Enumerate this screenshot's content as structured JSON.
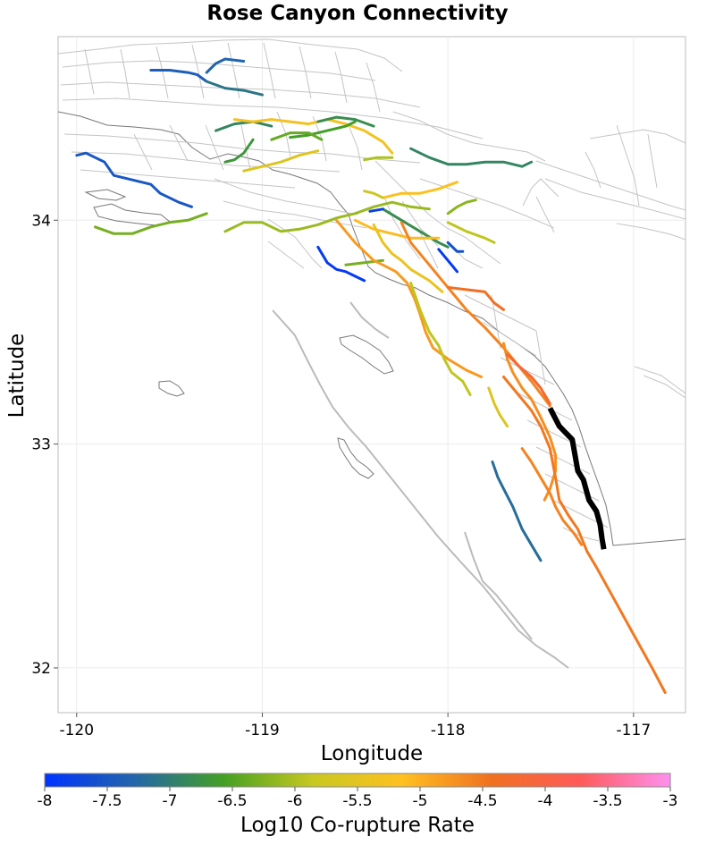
{
  "chart_data": {
    "type": "map",
    "title": "Rose Canyon Connectivity",
    "xlabel": "Longitude",
    "ylabel": "Latitude",
    "xlim": [
      -120.1,
      -116.72
    ],
    "ylim": [
      31.8,
      34.82
    ],
    "x_ticks": [
      "-120",
      "-119",
      "-118",
      "-117"
    ],
    "x_tick_values": [
      -120,
      -119,
      -118,
      -117
    ],
    "y_ticks": [
      "32",
      "33",
      "34"
    ],
    "y_tick_values": [
      32,
      33,
      34
    ],
    "grid": true,
    "colorbar": {
      "label": "Log10 Co-rupture Rate",
      "range": [
        -8,
        -3
      ],
      "orientation": "horizontal",
      "placement": "bottom",
      "ticks": [
        "-8",
        "-7.5",
        "-7",
        "-6.5",
        "-6",
        "-5.5",
        "-5",
        "-4.5",
        "-4",
        "-3.5",
        "-3"
      ],
      "tick_values": [
        -8,
        -7.5,
        -7,
        -6.5,
        -6,
        -5.5,
        -5,
        -4.5,
        -4,
        -3.5,
        -3
      ],
      "colors": [
        "#0033ff",
        "#2266aa",
        "#44a022",
        "#c8c820",
        "#ffc020",
        "#f07020",
        "#ff5a5a",
        "#ff90f0"
      ]
    },
    "target_fault": {
      "name": "Rose Canyon",
      "color": "#000000",
      "points": [
        [
          -117.45,
          33.16
        ],
        [
          -117.4,
          33.08
        ],
        [
          -117.33,
          33.02
        ],
        [
          -117.3,
          32.88
        ],
        [
          -117.27,
          32.84
        ],
        [
          -117.24,
          32.75
        ],
        [
          -117.2,
          32.7
        ],
        [
          -117.18,
          32.64
        ],
        [
          -117.17,
          32.58
        ],
        [
          -117.16,
          32.53
        ]
      ]
    },
    "faults": [
      {
        "rate": -7.4,
        "points": [
          [
            -119.6,
            34.67
          ],
          [
            -119.5,
            34.67
          ],
          [
            -119.4,
            34.66
          ],
          [
            -119.35,
            34.65
          ],
          [
            -119.3,
            34.62
          ]
        ]
      },
      {
        "rate": -7.3,
        "points": [
          [
            -119.3,
            34.66
          ],
          [
            -119.25,
            34.7
          ],
          [
            -119.2,
            34.72
          ],
          [
            -119.1,
            34.71
          ]
        ]
      },
      {
        "rate": -7.1,
        "points": [
          [
            -119.3,
            34.62
          ],
          [
            -119.2,
            34.59
          ],
          [
            -119.1,
            34.58
          ],
          [
            -119.0,
            34.56
          ]
        ]
      },
      {
        "rate": -7.5,
        "points": [
          [
            -120.0,
            34.29
          ],
          [
            -119.95,
            34.3
          ],
          [
            -119.85,
            34.26
          ],
          [
            -119.8,
            34.2
          ],
          [
            -119.7,
            34.18
          ],
          [
            -119.6,
            34.16
          ],
          [
            -119.55,
            34.12
          ],
          [
            -119.5,
            34.1
          ],
          [
            -119.45,
            34.08
          ],
          [
            -119.38,
            34.06
          ]
        ]
      },
      {
        "rate": -6.3,
        "points": [
          [
            -119.9,
            33.97
          ],
          [
            -119.8,
            33.94
          ],
          [
            -119.7,
            33.94
          ],
          [
            -119.6,
            33.97
          ],
          [
            -119.5,
            33.99
          ],
          [
            -119.4,
            34.0
          ],
          [
            -119.3,
            34.03
          ]
        ]
      },
      {
        "rate": -6.1,
        "points": [
          [
            -119.2,
            33.95
          ],
          [
            -119.1,
            33.99
          ],
          [
            -119.0,
            33.99
          ],
          [
            -118.9,
            33.95
          ],
          [
            -118.8,
            33.96
          ],
          [
            -118.7,
            33.98
          ],
          [
            -118.6,
            34.01
          ],
          [
            -118.5,
            34.03
          ],
          [
            -118.4,
            34.06
          ],
          [
            -118.3,
            34.08
          ],
          [
            -118.2,
            34.06
          ],
          [
            -118.1,
            34.05
          ]
        ]
      },
      {
        "rate": -6.9,
        "points": [
          [
            -119.25,
            34.4
          ],
          [
            -119.15,
            34.43
          ],
          [
            -119.05,
            34.44
          ],
          [
            -118.95,
            34.42
          ]
        ]
      },
      {
        "rate": -6.7,
        "points": [
          [
            -119.2,
            34.26
          ],
          [
            -119.15,
            34.27
          ],
          [
            -119.1,
            34.3
          ],
          [
            -119.05,
            34.36
          ]
        ]
      },
      {
        "rate": -5.6,
        "points": [
          [
            -119.1,
            34.22
          ],
          [
            -119.0,
            34.24
          ],
          [
            -118.9,
            34.26
          ],
          [
            -118.8,
            34.29
          ],
          [
            -118.7,
            34.31
          ]
        ]
      },
      {
        "rate": -5.3,
        "points": [
          [
            -119.15,
            34.45
          ],
          [
            -119.05,
            34.44
          ],
          [
            -118.95,
            34.45
          ],
          [
            -118.85,
            34.44
          ],
          [
            -118.75,
            34.43
          ],
          [
            -118.65,
            34.45
          ],
          [
            -118.55,
            34.43
          ],
          [
            -118.45,
            34.4
          ],
          [
            -118.35,
            34.35
          ],
          [
            -118.3,
            34.3
          ]
        ]
      },
      {
        "rate": -6.6,
        "points": [
          [
            -118.85,
            34.37
          ],
          [
            -118.75,
            34.38
          ],
          [
            -118.65,
            34.4
          ],
          [
            -118.55,
            34.42
          ],
          [
            -118.5,
            34.44
          ]
        ]
      },
      {
        "rate": -6.8,
        "points": [
          [
            -118.7,
            34.44
          ],
          [
            -118.6,
            34.46
          ],
          [
            -118.5,
            34.45
          ],
          [
            -118.4,
            34.42
          ]
        ]
      },
      {
        "rate": -6.4,
        "points": [
          [
            -118.95,
            34.36
          ],
          [
            -118.85,
            34.39
          ],
          [
            -118.75,
            34.39
          ],
          [
            -118.68,
            34.36
          ]
        ]
      },
      {
        "rate": -6.0,
        "points": [
          [
            -118.45,
            34.27
          ],
          [
            -118.38,
            34.28
          ],
          [
            -118.3,
            34.28
          ]
        ]
      },
      {
        "rate": -6.9,
        "points": [
          [
            -118.2,
            34.32
          ],
          [
            -118.1,
            34.28
          ],
          [
            -118.0,
            34.25
          ],
          [
            -117.9,
            34.25
          ],
          [
            -117.8,
            34.26
          ],
          [
            -117.7,
            34.26
          ],
          [
            -117.6,
            34.24
          ],
          [
            -117.55,
            34.26
          ]
        ]
      },
      {
        "rate": -5.2,
        "points": [
          [
            -118.35,
            34.1
          ],
          [
            -118.25,
            34.12
          ],
          [
            -118.15,
            34.12
          ],
          [
            -118.05,
            34.14
          ],
          [
            -117.95,
            34.17
          ]
        ]
      },
      {
        "rate": -6.2,
        "points": [
          [
            -118.0,
            34.03
          ],
          [
            -117.95,
            34.06
          ],
          [
            -117.9,
            34.08
          ],
          [
            -117.85,
            34.09
          ]
        ]
      },
      {
        "rate": -5.9,
        "points": [
          [
            -118.0,
            33.99
          ],
          [
            -117.9,
            33.95
          ],
          [
            -117.8,
            33.92
          ],
          [
            -117.75,
            33.9
          ]
        ]
      },
      {
        "rate": -6.8,
        "points": [
          [
            -118.35,
            34.05
          ],
          [
            -118.25,
            34.0
          ],
          [
            -118.15,
            33.95
          ],
          [
            -118.05,
            33.9
          ],
          [
            -118.0,
            33.88
          ]
        ]
      },
      {
        "rate": -7.8,
        "points": [
          [
            -118.42,
            34.04
          ],
          [
            -118.35,
            34.05
          ]
        ]
      },
      {
        "rate": -7.6,
        "points": [
          [
            -118.0,
            33.9
          ],
          [
            -117.95,
            33.86
          ],
          [
            -117.92,
            33.86
          ]
        ]
      },
      {
        "rate": -5.1,
        "points": [
          [
            -118.5,
            34.0
          ],
          [
            -118.4,
            33.96
          ],
          [
            -118.3,
            33.94
          ],
          [
            -118.2,
            33.92
          ],
          [
            -118.1,
            33.92
          ],
          [
            -118.05,
            33.92
          ]
        ]
      },
      {
        "rate": -6.3,
        "points": [
          [
            -118.55,
            33.8
          ],
          [
            -118.45,
            33.81
          ],
          [
            -118.35,
            33.82
          ]
        ]
      },
      {
        "rate": -7.9,
        "points": [
          [
            -118.7,
            33.88
          ],
          [
            -118.65,
            33.81
          ],
          [
            -118.6,
            33.78
          ],
          [
            -118.55,
            33.77
          ],
          [
            -118.5,
            33.75
          ],
          [
            -118.45,
            33.73
          ]
        ]
      },
      {
        "rate": -7.9,
        "points": [
          [
            -118.05,
            33.87
          ],
          [
            -118.0,
            33.82
          ],
          [
            -117.95,
            33.77
          ]
        ]
      },
      {
        "rate": -4.6,
        "points": [
          [
            -118.25,
            33.99
          ],
          [
            -118.2,
            33.9
          ],
          [
            -118.15,
            33.85
          ],
          [
            -118.1,
            33.8
          ],
          [
            -118.05,
            33.75
          ],
          [
            -117.98,
            33.68
          ],
          [
            -117.9,
            33.6
          ],
          [
            -117.8,
            33.52
          ],
          [
            -117.7,
            33.43
          ],
          [
            -117.62,
            33.35
          ],
          [
            -117.55,
            33.28
          ],
          [
            -117.45,
            33.17
          ]
        ]
      },
      {
        "rate": -5.4,
        "points": [
          [
            -118.4,
            33.98
          ],
          [
            -118.35,
            33.9
          ],
          [
            -118.3,
            33.85
          ],
          [
            -118.25,
            33.82
          ],
          [
            -118.2,
            33.78
          ],
          [
            -118.1,
            33.73
          ],
          [
            -118.03,
            33.68
          ]
        ]
      },
      {
        "rate": -4.8,
        "points": [
          [
            -118.6,
            34.0
          ],
          [
            -118.55,
            33.95
          ],
          [
            -118.5,
            33.9
          ],
          [
            -118.45,
            33.86
          ],
          [
            -118.4,
            33.82
          ],
          [
            -118.35,
            33.8
          ],
          [
            -118.28,
            33.77
          ],
          [
            -118.22,
            33.72
          ],
          [
            -118.18,
            33.65
          ],
          [
            -118.15,
            33.58
          ],
          [
            -118.12,
            33.5
          ],
          [
            -118.08,
            33.43
          ],
          [
            -118.0,
            33.38
          ],
          [
            -117.9,
            33.33
          ],
          [
            -117.82,
            33.3
          ]
        ]
      },
      {
        "rate": -5.9,
        "points": [
          [
            -118.2,
            33.72
          ],
          [
            -118.15,
            33.6
          ],
          [
            -118.1,
            33.5
          ],
          [
            -118.05,
            33.44
          ],
          [
            -118.02,
            33.38
          ],
          [
            -117.98,
            33.32
          ],
          [
            -117.92,
            33.28
          ],
          [
            -117.88,
            33.22
          ]
        ]
      },
      {
        "rate": -5.6,
        "points": [
          [
            -117.78,
            33.25
          ],
          [
            -117.75,
            33.18
          ],
          [
            -117.72,
            33.13
          ],
          [
            -117.68,
            33.08
          ]
        ]
      },
      {
        "rate": -4.4,
        "points": [
          [
            -118.0,
            33.7
          ],
          [
            -117.9,
            33.69
          ],
          [
            -117.8,
            33.68
          ],
          [
            -117.75,
            33.63
          ],
          [
            -117.7,
            33.6
          ]
        ]
      },
      {
        "rate": -4.7,
        "points": [
          [
            -117.7,
            33.45
          ],
          [
            -117.68,
            33.38
          ],
          [
            -117.65,
            33.32
          ],
          [
            -117.6,
            33.25
          ],
          [
            -117.55,
            33.2
          ],
          [
            -117.5,
            33.12
          ],
          [
            -117.45,
            33.03
          ],
          [
            -117.42,
            32.95
          ],
          [
            -117.42,
            32.88
          ],
          [
            -117.45,
            32.8
          ],
          [
            -117.48,
            32.75
          ]
        ]
      },
      {
        "rate": -4.5,
        "points": [
          [
            -117.7,
            33.3
          ],
          [
            -117.65,
            33.25
          ],
          [
            -117.6,
            33.2
          ],
          [
            -117.55,
            33.15
          ],
          [
            -117.5,
            33.08
          ],
          [
            -117.45,
            32.98
          ],
          [
            -117.42,
            32.85
          ],
          [
            -117.4,
            32.75
          ],
          [
            -117.35,
            32.68
          ],
          [
            -117.3,
            32.62
          ],
          [
            -117.25,
            32.52
          ],
          [
            -117.2,
            32.45
          ],
          [
            -117.1,
            32.3
          ],
          [
            -117.0,
            32.15
          ],
          [
            -116.9,
            32.0
          ],
          [
            -116.83,
            31.89
          ]
        ]
      },
      {
        "rate": -4.6,
        "points": [
          [
            -117.6,
            32.98
          ],
          [
            -117.55,
            32.92
          ],
          [
            -117.5,
            32.85
          ],
          [
            -117.45,
            32.78
          ],
          [
            -117.42,
            32.72
          ],
          [
            -117.38,
            32.66
          ],
          [
            -117.32,
            32.6
          ],
          [
            -117.28,
            32.55
          ]
        ]
      },
      {
        "rate": -4.2,
        "points": [
          [
            -117.68,
            33.4
          ],
          [
            -117.62,
            33.35
          ],
          [
            -117.55,
            33.3
          ],
          [
            -117.5,
            33.25
          ],
          [
            -117.45,
            33.18
          ]
        ]
      },
      {
        "rate": -7.2,
        "points": [
          [
            -117.76,
            32.92
          ],
          [
            -117.73,
            32.85
          ],
          [
            -117.7,
            32.8
          ],
          [
            -117.65,
            32.72
          ],
          [
            -117.6,
            32.62
          ],
          [
            -117.55,
            32.55
          ],
          [
            -117.5,
            32.48
          ]
        ]
      },
      {
        "rate": -5.8,
        "points": [
          [
            -118.45,
            34.13
          ],
          [
            -118.4,
            34.12
          ],
          [
            -118.35,
            34.1
          ]
        ]
      }
    ]
  }
}
